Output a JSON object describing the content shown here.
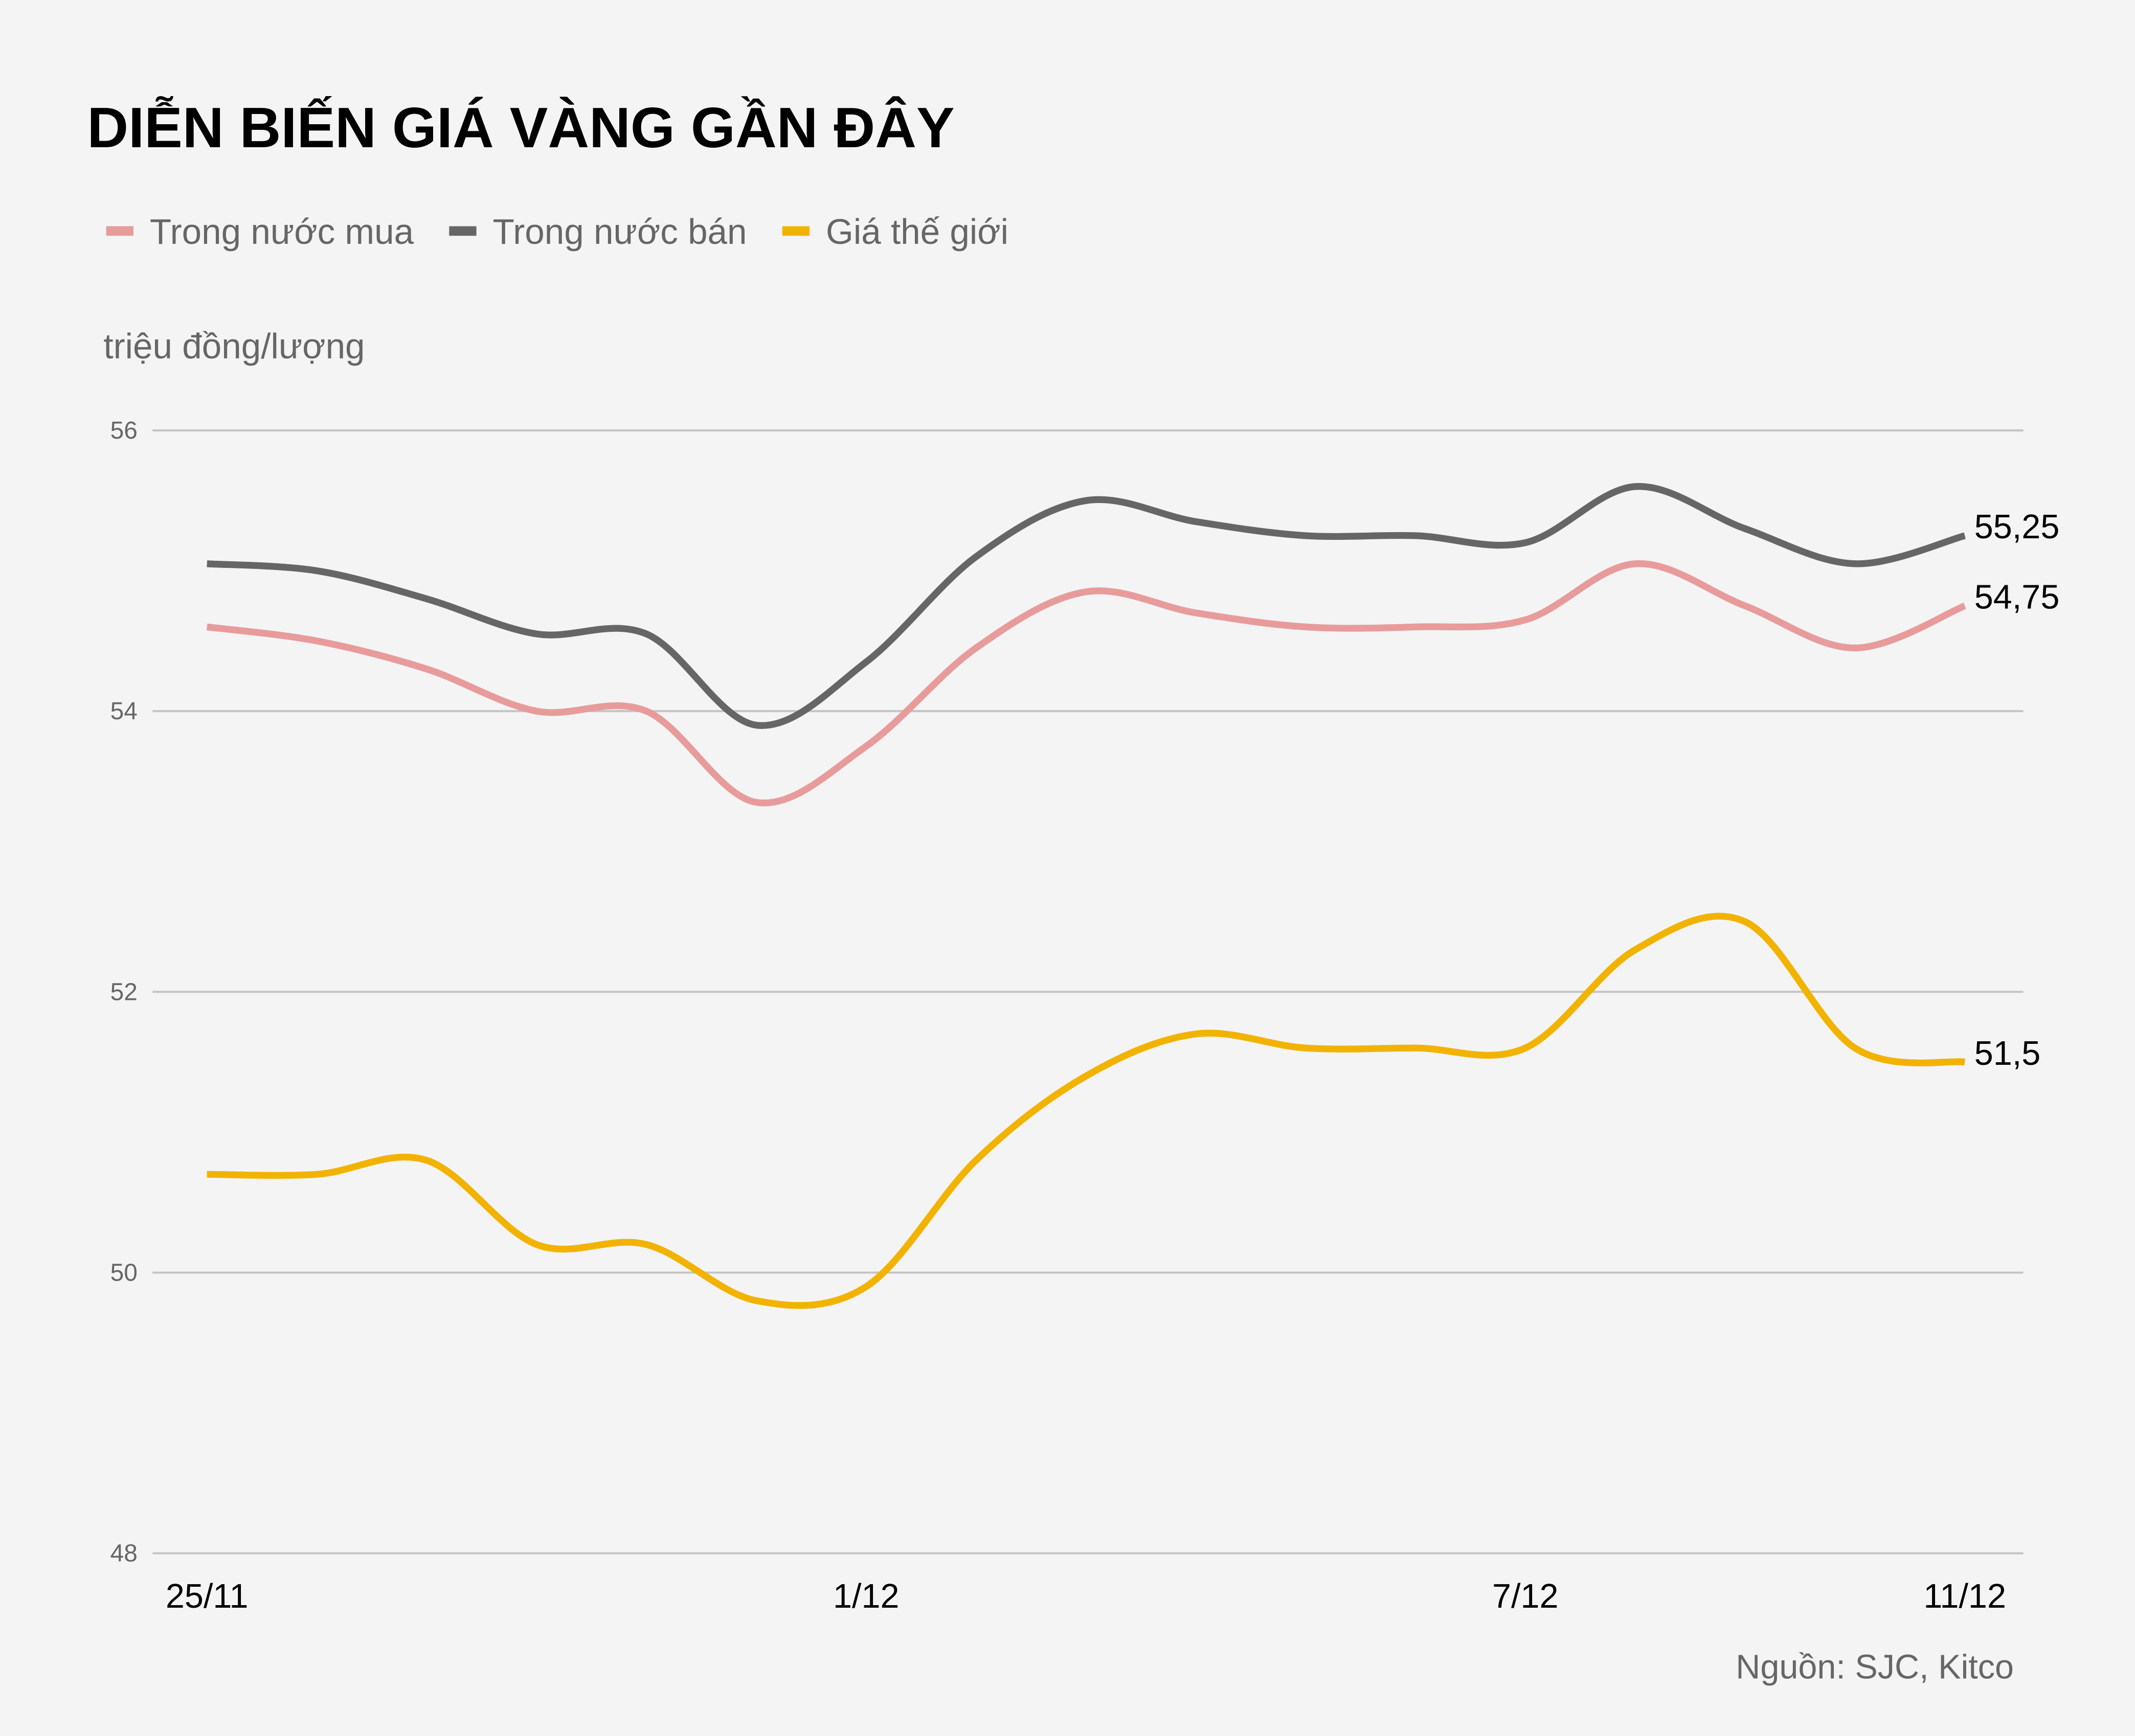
{
  "chart_data": {
    "type": "line",
    "title": "DIỄN BIẾN GIÁ VÀNG GẦN ĐÂY",
    "ylabel": "triệu đồng/lượng",
    "source": "Nguồn: SJC, Kitco",
    "ylim": [
      48,
      56
    ],
    "yticks": [
      "48",
      "50",
      "52",
      "54",
      "56"
    ],
    "grid": true,
    "legend_position": "top-left",
    "x": [
      "25/11",
      "26/11",
      "27/11",
      "28/11",
      "29/11",
      "30/11",
      "1/12",
      "2/12",
      "3/12",
      "4/12",
      "5/12",
      "6/12",
      "7/12",
      "8/12",
      "9/12",
      "10/12",
      "11/12"
    ],
    "xtick_labels": [
      "25/11",
      "1/12",
      "7/12",
      "11/12"
    ],
    "series": [
      {
        "name": "Trong nước mua",
        "color": "#e89b9b",
        "values": [
          54.6,
          54.5,
          54.3,
          54.0,
          54.0,
          53.35,
          53.75,
          54.45,
          54.85,
          54.7,
          54.6,
          54.6,
          54.65,
          55.05,
          54.75,
          54.45,
          54.75
        ],
        "end_label": "54,75"
      },
      {
        "name": "Trong nước bán",
        "color": "#666666",
        "values": [
          55.05,
          55.0,
          54.8,
          54.55,
          54.55,
          53.9,
          54.35,
          55.1,
          55.5,
          55.35,
          55.25,
          55.25,
          55.2,
          55.6,
          55.3,
          55.05,
          55.25
        ],
        "end_label": "55,25"
      },
      {
        "name": "Giá thế giới",
        "color": "#f2b300",
        "values": [
          50.7,
          50.7,
          50.8,
          50.2,
          50.2,
          49.8,
          49.9,
          50.8,
          51.4,
          51.7,
          51.6,
          51.6,
          51.6,
          52.3,
          52.5,
          51.6,
          51.5
        ],
        "end_label": "51,5"
      }
    ]
  }
}
